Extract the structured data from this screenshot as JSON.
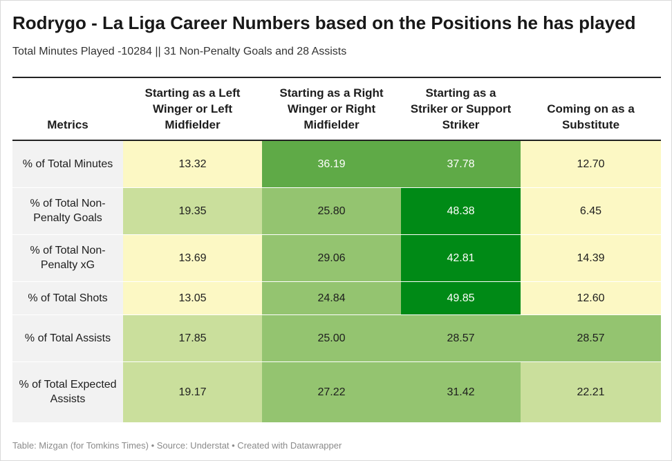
{
  "title": "Rodrygo - La Liga Career Numbers based on the Positions he has played",
  "subtitle": "Total Minutes Played -10284 || 31 Non-Penalty Goals and 28 Assists",
  "footer": "Table: Mizgan (for Tomkins Times) • Source: Understat • Created with Datawrapper",
  "chart_data": {
    "type": "table",
    "title": "Rodrygo - La Liga Career Numbers based on the Positions he has played",
    "columns": [
      "Metrics",
      "Starting as a Left Winger or Left Midfielder",
      "Starting as a Right Winger or Right Midfielder",
      "Starting as a Striker or Support Striker",
      "Coming on as a Substitute"
    ],
    "rows": [
      {
        "metric": "% of Total Minutes",
        "values": [
          "13.32",
          "36.19",
          "37.78",
          "12.70"
        ]
      },
      {
        "metric": "% of Total Non-Penalty Goals",
        "values": [
          "19.35",
          "25.80",
          "48.38",
          "6.45"
        ]
      },
      {
        "metric": "% of Total Non-Penalty xG",
        "values": [
          "13.69",
          "29.06",
          "42.81",
          "14.39"
        ]
      },
      {
        "metric": "% of Total Shots",
        "values": [
          "13.05",
          "24.84",
          "49.85",
          "12.60"
        ]
      },
      {
        "metric": "% of Total Assists",
        "values": [
          "17.85",
          "25.00",
          "28.57",
          "28.57"
        ]
      },
      {
        "metric": "% of Total Expected Assists",
        "values": [
          "19.17",
          "27.22",
          "31.42",
          "22.21"
        ]
      }
    ],
    "color_scale": [
      {
        "min": 0,
        "color": "#fcf8c4",
        "text_color": "#1d1d1d"
      },
      {
        "min": 15,
        "color": "#cadf9c",
        "text_color": "#1d1d1d"
      },
      {
        "min": 24,
        "color": "#94c470",
        "text_color": "#1d1d1d"
      },
      {
        "min": 35,
        "color": "#5faa47",
        "text_color": "#ffffff"
      },
      {
        "min": 40,
        "color": "#008a16",
        "text_color": "#ffffff"
      }
    ]
  }
}
